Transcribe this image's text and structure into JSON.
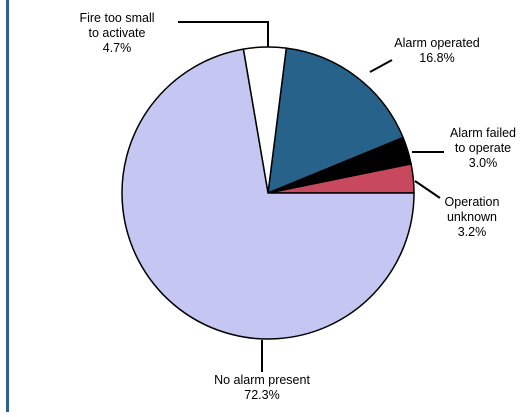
{
  "chart_data": {
    "type": "pie",
    "title": "",
    "start_angle_deg": 0,
    "direction": "counterclockwise",
    "slice_border": "#000000",
    "slices": [
      {
        "label_lines": [
          "Operation",
          "unknown"
        ],
        "value_text": "3.2%",
        "value": 3.2,
        "color": "#c8485e"
      },
      {
        "label_lines": [
          "Alarm failed",
          "to operate"
        ],
        "value_text": "3.0%",
        "value": 3.0,
        "color": "#000000"
      },
      {
        "label_lines": [
          "Alarm operated"
        ],
        "value_text": "16.8%",
        "value": 16.8,
        "color": "#27628a"
      },
      {
        "label_lines": [
          "Fire too small",
          "to activate"
        ],
        "value_text": "4.7%",
        "value": 4.7,
        "color": "#ffffff"
      },
      {
        "label_lines": [
          "No alarm present"
        ],
        "value_text": "72.3%",
        "value": 72.3,
        "color": "#c6c6f3"
      }
    ]
  }
}
